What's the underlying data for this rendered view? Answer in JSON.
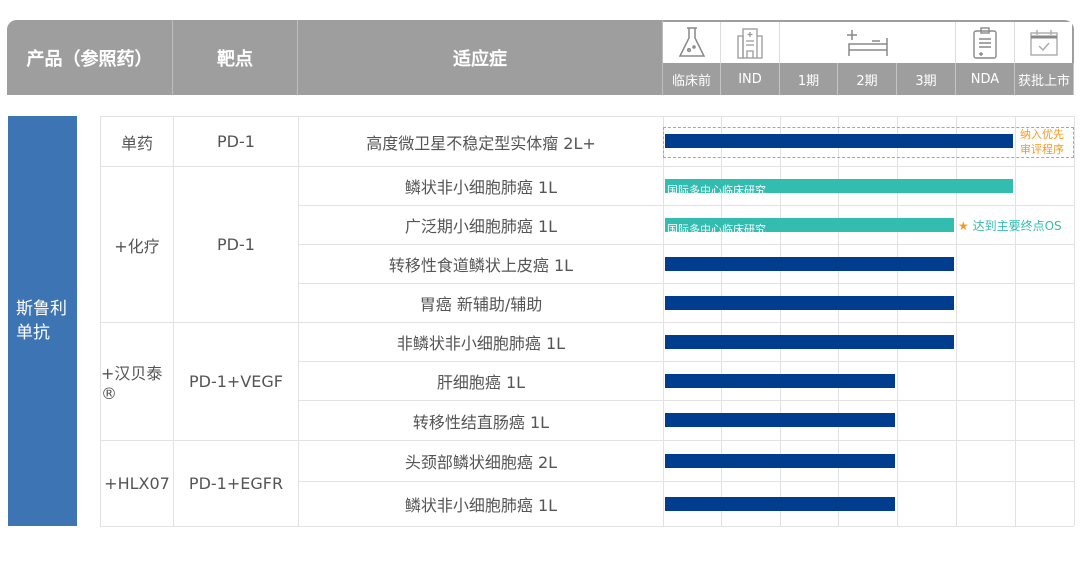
{
  "header": {
    "product": "产品（参照药）",
    "target": "靶点",
    "indication": "适应症",
    "stages": [
      "临床前",
      "IND",
      "1期",
      "2期",
      "3期",
      "NDA",
      "获批上市"
    ],
    "icons": [
      "flask-icon",
      "hospital-icon",
      "hospital-bed-icon",
      "clipboard-icon",
      "calendar-check-icon"
    ]
  },
  "drug": "斯鲁利单抗",
  "groups": [
    {
      "product": "单药",
      "target": "PD-1"
    },
    {
      "product": "+化疗",
      "target": "PD-1"
    },
    {
      "product": "+汉贝泰®",
      "target": "PD-1+VEGF"
    },
    {
      "product": "+HLX07",
      "target": "PD-1+EGFR"
    }
  ],
  "rows": [
    {
      "indication": "高度微卫星不稳定型实体瘤 2L+",
      "stage": "NDA",
      "type": "domestic",
      "annotation": "纳入优先审评程序"
    },
    {
      "indication": "鳞状非小细胞肺癌 1L",
      "stage": "NDA",
      "type": "international",
      "bar_label": "国际多中心临床研究"
    },
    {
      "indication": "广泛期小细胞肺癌 1L",
      "stage": "3期",
      "type": "international",
      "bar_label": "国际多中心临床研究",
      "annotation": "达到主要终点OS"
    },
    {
      "indication": "转移性食道鳞状上皮癌 1L",
      "stage": "3期",
      "type": "domestic"
    },
    {
      "indication": "胃癌 新辅助/辅助",
      "stage": "3期",
      "type": "domestic"
    },
    {
      "indication": "非鳞状非小细胞肺癌 1L",
      "stage": "3期",
      "type": "domestic"
    },
    {
      "indication": "肝细胞癌 1L",
      "stage": "2期",
      "type": "domestic"
    },
    {
      "indication": "转移性结直肠癌 1L",
      "stage": "2期",
      "type": "domestic"
    },
    {
      "indication": "头颈部鳞状细胞癌 2L",
      "stage": "2期",
      "type": "domestic"
    },
    {
      "indication": "鳞状非小细胞肺癌 1L",
      "stage": "2期",
      "type": "domestic"
    }
  ],
  "colors": {
    "header": "#9e9e9e",
    "drug_block": "#3d74b3",
    "domestic": "#003d8f",
    "international": "#33bcb0",
    "annotation_orange": "#f39a1e",
    "annotation_teal": "#33bcb0"
  }
}
